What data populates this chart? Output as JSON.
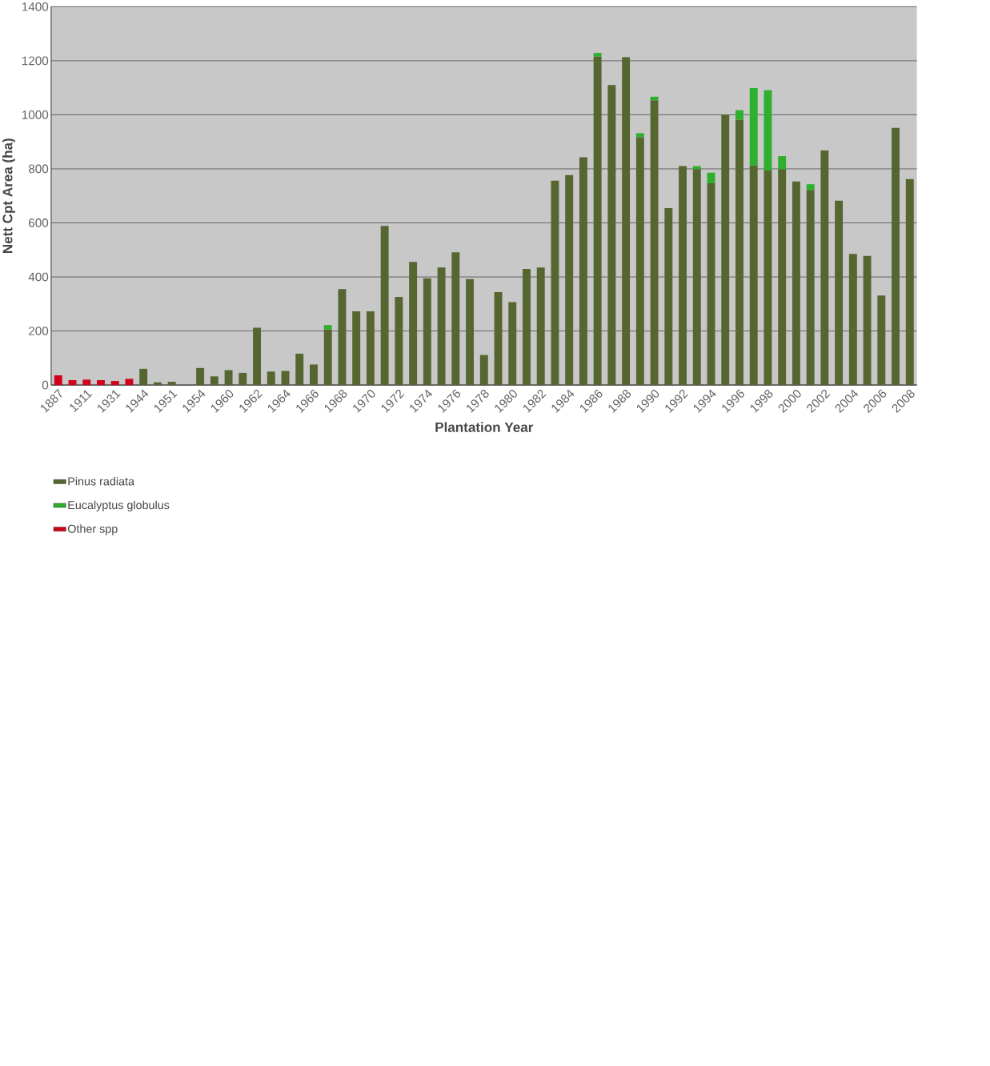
{
  "chart_data": {
    "type": "bar",
    "stacked": true,
    "xlabel": "Plantation Year",
    "ylabel": "Nett Cpt Area (ha)",
    "categories": [
      "1887",
      null,
      "1911",
      null,
      "1931",
      null,
      "1944",
      null,
      "1951",
      null,
      "1954",
      null,
      "1960",
      null,
      "1962",
      null,
      "1964",
      null,
      "1966",
      null,
      "1968",
      null,
      "1970",
      null,
      "1972",
      null,
      "1974",
      null,
      "1976",
      null,
      "1978",
      null,
      "1980",
      null,
      "1982",
      null,
      "1984",
      null,
      "1986",
      null,
      "1988",
      null,
      "1990",
      null,
      "1992",
      null,
      "1994",
      null,
      "1996",
      null,
      "1998",
      null,
      "2000",
      null,
      "2002",
      null,
      "2004",
      null,
      "2006",
      null,
      "2008"
    ],
    "series": [
      {
        "name": "Pinus radiata",
        "color": "#556630",
        "values": [
          null,
          null,
          null,
          null,
          null,
          null,
          60,
          10,
          12,
          null,
          63,
          32,
          55,
          45,
          212,
          50,
          52,
          116,
          76,
          206,
          355,
          273,
          273,
          589,
          326,
          456,
          395,
          435,
          491,
          392,
          111,
          344,
          307,
          430,
          435,
          756,
          777,
          843,
          1216,
          1110,
          1213,
          917,
          1054,
          655,
          810,
          799,
          747,
          1000,
          982,
          813,
          794,
          799,
          753,
          722,
          868,
          682,
          485,
          478,
          331,
          952,
          762
        ]
      },
      {
        "name": "Eucalyptus globulus",
        "color": "#2eaf2e",
        "values": [
          null,
          null,
          null,
          null,
          null,
          null,
          null,
          null,
          null,
          null,
          null,
          null,
          null,
          null,
          null,
          null,
          null,
          null,
          null,
          16,
          null,
          null,
          null,
          null,
          null,
          null,
          null,
          null,
          null,
          null,
          null,
          null,
          null,
          null,
          null,
          null,
          null,
          null,
          13,
          null,
          null,
          15,
          13,
          null,
          null,
          11,
          39,
          null,
          35,
          286,
          297,
          48,
          null,
          21,
          null,
          null,
          null,
          null,
          null,
          null,
          null
        ]
      },
      {
        "name": "Other spp",
        "color": "#d0021b",
        "values": [
          36,
          18,
          20,
          18,
          15,
          23,
          null,
          null,
          null,
          null,
          null,
          null,
          null,
          null,
          null,
          null,
          null,
          null,
          null,
          null,
          null,
          null,
          null,
          null,
          null,
          null,
          null,
          null,
          null,
          null,
          null,
          null,
          null,
          null,
          null,
          null,
          null,
          null,
          null,
          null,
          null,
          null,
          null,
          null,
          null,
          null,
          null,
          null,
          null,
          null,
          null,
          null,
          null,
          null,
          null,
          null,
          null,
          null,
          null,
          null,
          null
        ]
      }
    ],
    "ylim": [
      0,
      1400
    ],
    "yticks": [
      0,
      200,
      400,
      600,
      800,
      1000,
      1200,
      1400
    ],
    "grid": "y",
    "legend": "bottom left"
  }
}
